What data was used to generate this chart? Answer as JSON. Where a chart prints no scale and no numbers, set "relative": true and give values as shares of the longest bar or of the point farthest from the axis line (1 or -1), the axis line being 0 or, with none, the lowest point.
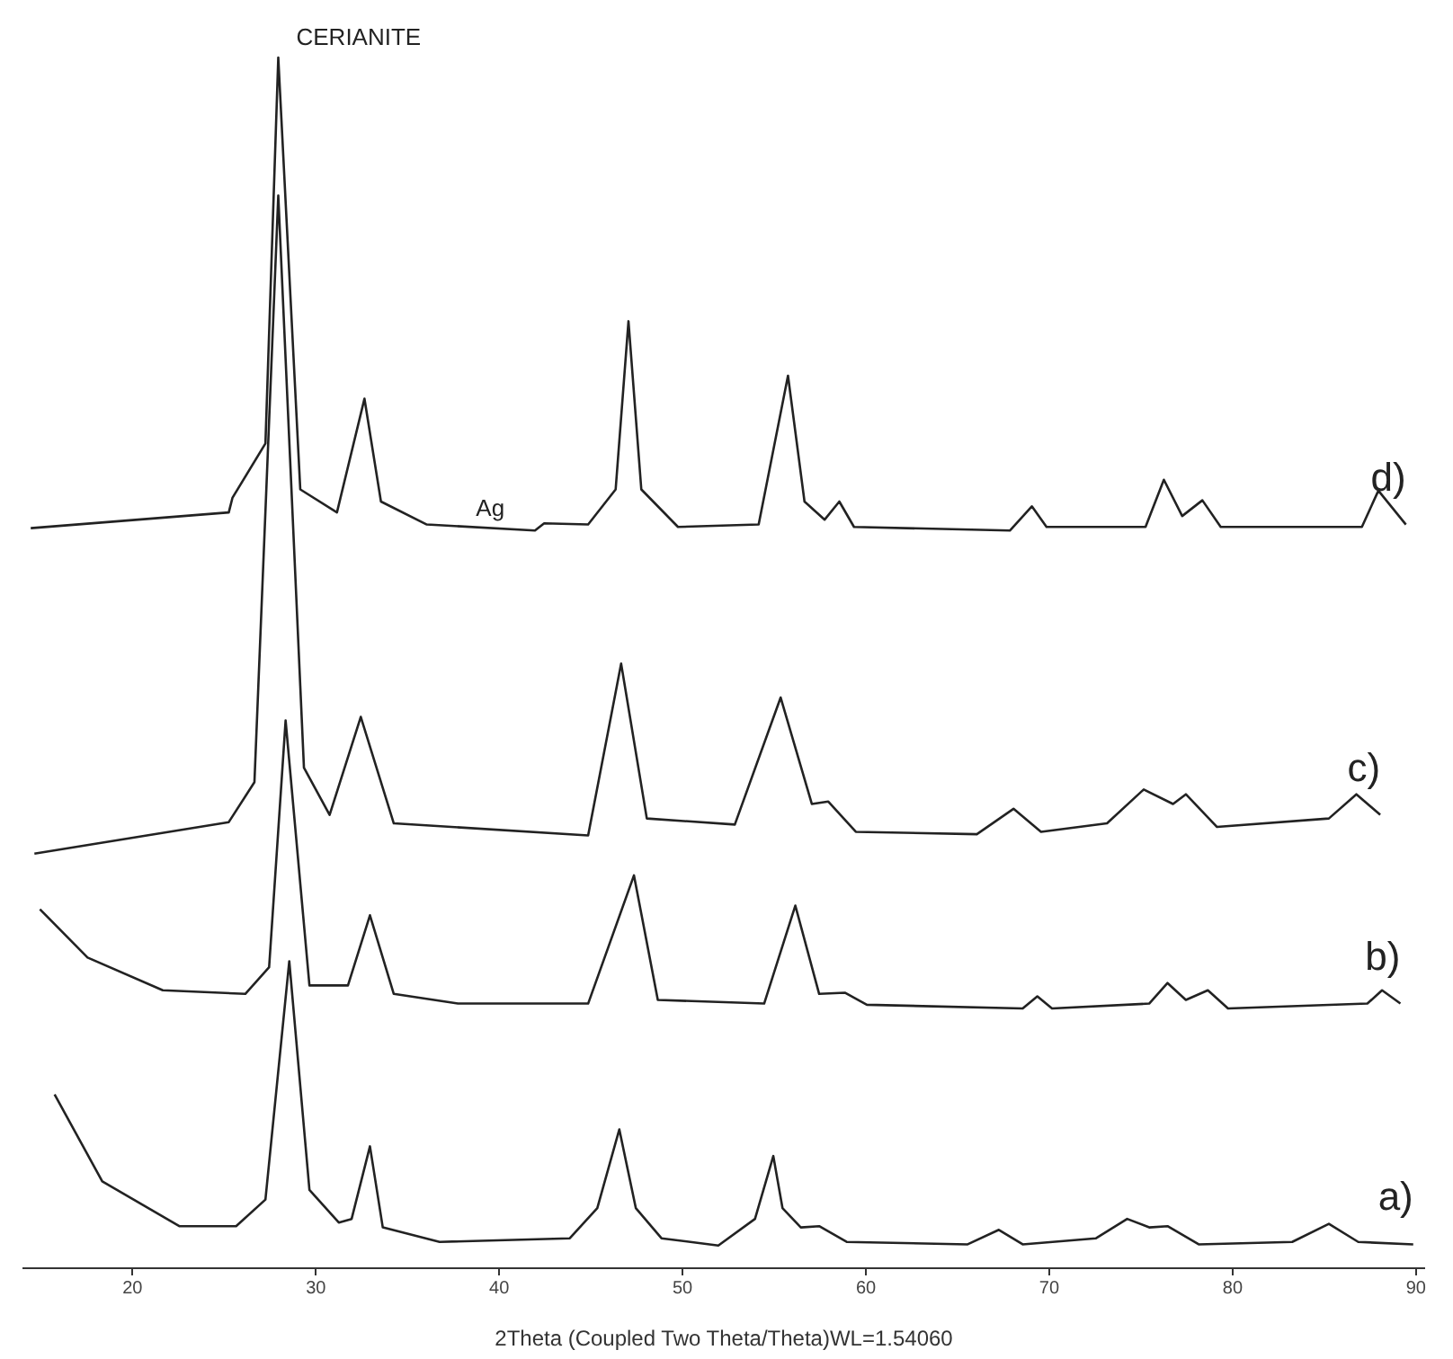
{
  "chart_data": {
    "type": "line",
    "relative": true,
    "xlabel": "2Theta (Coupled Two Theta/Theta)WL=1.54060",
    "xlim": [
      14,
      90.5
    ],
    "xticks": [
      20,
      30,
      40,
      50,
      60,
      70,
      80,
      90
    ],
    "grid": false,
    "marker": "none",
    "line_style": "solid",
    "annotations": [
      {
        "text": "CERIANITE",
        "x": 28,
        "y": 1
      },
      {
        "text": "Ag",
        "x": 37.8,
        "y": 0.611
      }
    ],
    "series": [
      {
        "name": "d)",
        "color": "#222222",
        "x": [
          14.5,
          25.3,
          25.5,
          27.3,
          28.0,
          29.2,
          31.2,
          32.7,
          33.6,
          36.1,
          42.0,
          42.5,
          44.9,
          46.4,
          47.1,
          47.8,
          49.8,
          54.2,
          55.8,
          56.7,
          57.8,
          58.6,
          59.4,
          67.9,
          69.1,
          69.9,
          75.3,
          76.3,
          77.3,
          78.4,
          79.4,
          87.1,
          88.0,
          89.5
        ],
        "values": [
          0.611,
          0.624,
          0.636,
          0.681,
          1,
          0.643,
          0.624,
          0.718,
          0.633,
          0.614,
          0.609,
          0.615,
          0.614,
          0.643,
          0.782,
          0.643,
          0.612,
          0.614,
          0.737,
          0.633,
          0.618,
          0.633,
          0.612,
          0.609,
          0.629,
          0.612,
          0.612,
          0.651,
          0.621,
          0.634,
          0.612,
          0.612,
          0.642,
          0.614
        ]
      },
      {
        "name": "c)",
        "color": "#222222",
        "x": [
          14.7,
          25.3,
          26.7,
          28.0,
          29.4,
          30.8,
          32.5,
          34.3,
          44.9,
          46.7,
          48.1,
          52.9,
          55.4,
          57.1,
          58.0,
          59.5,
          66.1,
          68.1,
          69.6,
          73.2,
          75.2,
          76.8,
          77.5,
          79.2,
          85.3,
          86.8,
          88.1
        ],
        "values": [
          0.342,
          0.368,
          0.401,
          0.886,
          0.413,
          0.374,
          0.455,
          0.367,
          0.357,
          0.499,
          0.371,
          0.366,
          0.471,
          0.383,
          0.385,
          0.36,
          0.358,
          0.379,
          0.36,
          0.367,
          0.395,
          0.383,
          0.391,
          0.364,
          0.371,
          0.391,
          0.374
        ]
      },
      {
        "name": "b)",
        "color": "#222222",
        "x": [
          15.0,
          17.6,
          21.7,
          26.2,
          27.5,
          28.4,
          29.7,
          31.8,
          33.0,
          34.3,
          37.8,
          44.9,
          47.4,
          48.7,
          54.5,
          56.2,
          57.5,
          58.9,
          60.1,
          68.6,
          69.4,
          70.2,
          75.5,
          76.5,
          77.5,
          78.7,
          79.8,
          87.4,
          88.2,
          89.2
        ],
        "values": [
          0.296,
          0.256,
          0.229,
          0.226,
          0.248,
          0.452,
          0.233,
          0.233,
          0.291,
          0.226,
          0.218,
          0.218,
          0.324,
          0.221,
          0.218,
          0.299,
          0.226,
          0.227,
          0.217,
          0.214,
          0.224,
          0.214,
          0.218,
          0.235,
          0.221,
          0.229,
          0.214,
          0.218,
          0.229,
          0.218
        ]
      },
      {
        "name": "a)",
        "color": "#222222",
        "x": [
          15.8,
          18.4,
          22.6,
          25.7,
          27.3,
          28.6,
          29.7,
          31.3,
          32.0,
          33.0,
          33.7,
          36.8,
          43.9,
          45.4,
          46.6,
          47.5,
          48.9,
          52.0,
          54.0,
          55.0,
          55.5,
          56.5,
          57.5,
          59.0,
          65.6,
          67.3,
          68.6,
          72.6,
          74.3,
          75.5,
          76.5,
          78.2,
          83.3,
          85.3,
          86.9,
          89.9
        ],
        "values": [
          0.143,
          0.071,
          0.034,
          0.034,
          0.056,
          0.253,
          0.064,
          0.037,
          0.04,
          0.1,
          0.033,
          0.021,
          0.024,
          0.049,
          0.114,
          0.049,
          0.024,
          0.018,
          0.04,
          0.092,
          0.049,
          0.033,
          0.034,
          0.021,
          0.019,
          0.031,
          0.019,
          0.024,
          0.04,
          0.033,
          0.034,
          0.019,
          0.021,
          0.036,
          0.021,
          0.019
        ]
      }
    ]
  }
}
